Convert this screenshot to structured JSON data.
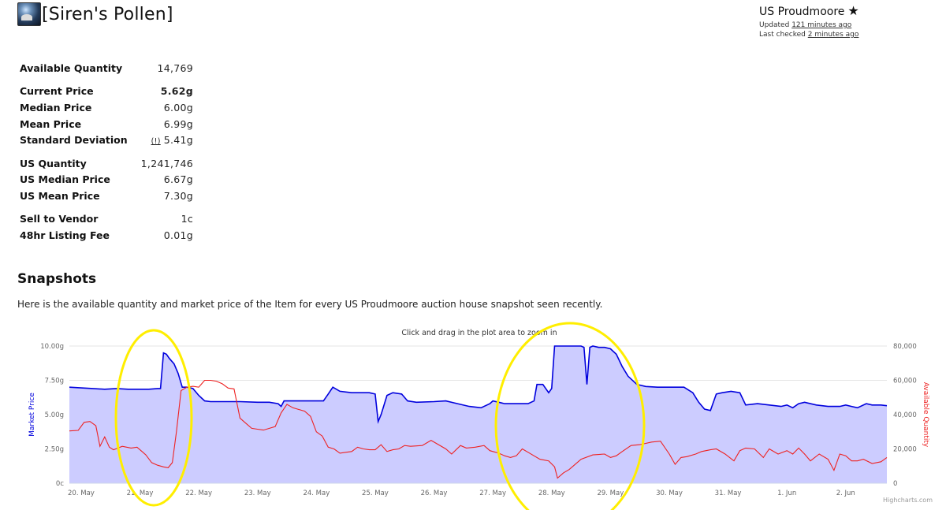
{
  "item": {
    "name": "[Siren's Pollen]"
  },
  "realm": {
    "name": "US Proudmoore",
    "star": "★",
    "updated_label": "Updated",
    "updated_value": "121 minutes ago",
    "checked_label": "Last checked",
    "checked_value": "2 minutes ago"
  },
  "stats": {
    "available_quantity": {
      "label": "Available Quantity",
      "value": "14,769"
    },
    "current_price": {
      "label": "Current Price",
      "value": "5.62g"
    },
    "median_price": {
      "label": "Median Price",
      "value": "6.00g"
    },
    "mean_price": {
      "label": "Mean Price",
      "value": "6.99g"
    },
    "std_dev": {
      "label": "Standard Deviation",
      "flag": "(!)",
      "value": "5.41g"
    },
    "us_quantity": {
      "label": "US Quantity",
      "value": "1,241,746"
    },
    "us_median_price": {
      "label": "US Median Price",
      "value": "6.67g"
    },
    "us_mean_price": {
      "label": "US Mean Price",
      "value": "7.30g"
    },
    "sell_to_vendor": {
      "label": "Sell to Vendor",
      "value": "1c"
    },
    "listing_fee": {
      "label": "48hr Listing Fee",
      "value": "0.01g"
    }
  },
  "snapshots": {
    "title": "Snapshots",
    "description": "Here is the available quantity and market price of the Item for every US Proudmoore auction house snapshot seen recently."
  },
  "chart_data": {
    "type": "line",
    "zoom_hint": "Click and drag in the plot area to zoom in",
    "credits": "Highcharts.com",
    "x_categories": [
      "20. May",
      "21. May",
      "22. May",
      "23. May",
      "24. May",
      "25. May",
      "26. May",
      "27. May",
      "28. May",
      "29. May",
      "30. May",
      "31. May",
      "1. Jun",
      "2. Jun"
    ],
    "x_range": [
      19.8,
      33.7
    ],
    "left_axis": {
      "title": "Market Price",
      "ylim": [
        0,
        10
      ],
      "ticks": [
        "0c",
        "2.50g",
        "5.00g",
        "7.50g",
        "10.00g"
      ],
      "color": "#0000dd"
    },
    "right_axis": {
      "title": "Available Quantity",
      "ylim": [
        0,
        80000
      ],
      "ticks": [
        "0",
        "20,000",
        "40,000",
        "60,000",
        "80,000"
      ],
      "color": "#ee2222"
    },
    "grid": true,
    "series": [
      {
        "axis": "left",
        "color": "#0000dd",
        "fill": "#ccccff",
        "points": [
          [
            19.8,
            7.0
          ],
          [
            20.0,
            6.95
          ],
          [
            20.2,
            6.9
          ],
          [
            20.4,
            6.85
          ],
          [
            20.6,
            6.9
          ],
          [
            20.8,
            6.85
          ],
          [
            21.0,
            6.85
          ],
          [
            21.15,
            6.85
          ],
          [
            21.3,
            6.9
          ],
          [
            21.35,
            6.9
          ],
          [
            21.4,
            9.5
          ],
          [
            21.45,
            9.4
          ],
          [
            21.5,
            9.1
          ],
          [
            21.58,
            8.7
          ],
          [
            21.65,
            8.0
          ],
          [
            21.72,
            7.0
          ],
          [
            21.8,
            7.0
          ],
          [
            21.9,
            6.9
          ],
          [
            22.0,
            6.4
          ],
          [
            22.1,
            6.0
          ],
          [
            22.2,
            5.95
          ],
          [
            22.4,
            5.95
          ],
          [
            22.7,
            5.95
          ],
          [
            23.0,
            5.9
          ],
          [
            23.2,
            5.9
          ],
          [
            23.35,
            5.8
          ],
          [
            23.4,
            5.6
          ],
          [
            23.45,
            6.0
          ],
          [
            23.7,
            6.0
          ],
          [
            24.0,
            6.0
          ],
          [
            24.12,
            6.0
          ],
          [
            24.2,
            6.5
          ],
          [
            24.28,
            7.0
          ],
          [
            24.4,
            6.7
          ],
          [
            24.6,
            6.6
          ],
          [
            24.9,
            6.6
          ],
          [
            25.0,
            6.5
          ],
          [
            25.05,
            4.5
          ],
          [
            25.1,
            5.0
          ],
          [
            25.2,
            6.4
          ],
          [
            25.3,
            6.6
          ],
          [
            25.45,
            6.5
          ],
          [
            25.55,
            6.0
          ],
          [
            25.7,
            5.9
          ],
          [
            26.0,
            5.95
          ],
          [
            26.2,
            6.0
          ],
          [
            26.4,
            5.8
          ],
          [
            26.6,
            5.6
          ],
          [
            26.8,
            5.5
          ],
          [
            26.95,
            5.8
          ],
          [
            27.0,
            6.0
          ],
          [
            27.1,
            5.9
          ],
          [
            27.2,
            5.8
          ],
          [
            27.6,
            5.8
          ],
          [
            27.7,
            6.0
          ],
          [
            27.75,
            7.2
          ],
          [
            27.85,
            7.2
          ],
          [
            27.95,
            6.6
          ],
          [
            28.0,
            6.9
          ],
          [
            28.05,
            10.0
          ],
          [
            28.5,
            10.0
          ],
          [
            28.55,
            9.9
          ],
          [
            28.6,
            7.2
          ],
          [
            28.65,
            9.9
          ],
          [
            28.7,
            10.0
          ],
          [
            28.8,
            9.9
          ],
          [
            28.9,
            9.9
          ],
          [
            29.0,
            9.8
          ],
          [
            29.1,
            9.4
          ],
          [
            29.2,
            8.5
          ],
          [
            29.3,
            7.8
          ],
          [
            29.45,
            7.2
          ],
          [
            29.6,
            7.05
          ],
          [
            29.8,
            7.0
          ],
          [
            30.1,
            7.0
          ],
          [
            30.25,
            7.0
          ],
          [
            30.4,
            6.6
          ],
          [
            30.5,
            5.9
          ],
          [
            30.6,
            5.4
          ],
          [
            30.7,
            5.3
          ],
          [
            30.8,
            6.5
          ],
          [
            30.9,
            6.6
          ],
          [
            31.05,
            6.7
          ],
          [
            31.2,
            6.6
          ],
          [
            31.3,
            5.7
          ],
          [
            31.5,
            5.8
          ],
          [
            31.7,
            5.7
          ],
          [
            31.9,
            5.6
          ],
          [
            32.0,
            5.7
          ],
          [
            32.1,
            5.5
          ],
          [
            32.2,
            5.8
          ],
          [
            32.3,
            5.9
          ],
          [
            32.5,
            5.7
          ],
          [
            32.7,
            5.6
          ],
          [
            32.9,
            5.6
          ],
          [
            33.0,
            5.7
          ],
          [
            33.1,
            5.6
          ],
          [
            33.2,
            5.5
          ],
          [
            33.35,
            5.8
          ],
          [
            33.45,
            5.7
          ],
          [
            33.6,
            5.7
          ],
          [
            33.7,
            5.65
          ]
        ]
      },
      {
        "axis": "right",
        "color": "#ee2222",
        "points": [
          [
            19.8,
            30500
          ],
          [
            19.95,
            30800
          ],
          [
            20.05,
            35500
          ],
          [
            20.15,
            36000
          ],
          [
            20.25,
            33500
          ],
          [
            20.32,
            21500
          ],
          [
            20.4,
            27000
          ],
          [
            20.48,
            21000
          ],
          [
            20.55,
            19500
          ],
          [
            20.7,
            21500
          ],
          [
            20.85,
            20500
          ],
          [
            20.95,
            21000
          ],
          [
            21.05,
            18000
          ],
          [
            21.1,
            16500
          ],
          [
            21.2,
            12000
          ],
          [
            21.3,
            10500
          ],
          [
            21.4,
            9500
          ],
          [
            21.48,
            9000
          ],
          [
            21.55,
            12000
          ],
          [
            21.62,
            30000
          ],
          [
            21.7,
            54000
          ],
          [
            21.8,
            56000
          ],
          [
            21.9,
            56500
          ],
          [
            22.0,
            56000
          ],
          [
            22.1,
            60000
          ],
          [
            22.2,
            60000
          ],
          [
            22.3,
            59500
          ],
          [
            22.4,
            58000
          ],
          [
            22.5,
            55500
          ],
          [
            22.6,
            55000
          ],
          [
            22.7,
            38000
          ],
          [
            22.8,
            35000
          ],
          [
            22.9,
            32000
          ],
          [
            23.0,
            31500
          ],
          [
            23.1,
            31000
          ],
          [
            23.2,
            32000
          ],
          [
            23.3,
            33000
          ],
          [
            23.4,
            41000
          ],
          [
            23.5,
            46000
          ],
          [
            23.6,
            44000
          ],
          [
            23.7,
            43000
          ],
          [
            23.8,
            42000
          ],
          [
            23.9,
            39000
          ],
          [
            24.0,
            30000
          ],
          [
            24.1,
            27500
          ],
          [
            24.2,
            21000
          ],
          [
            24.3,
            20000
          ],
          [
            24.4,
            17500
          ],
          [
            24.5,
            18000
          ],
          [
            24.6,
            18500
          ],
          [
            24.7,
            21000
          ],
          [
            24.8,
            20000
          ],
          [
            24.9,
            19500
          ],
          [
            25.0,
            19500
          ],
          [
            25.1,
            22500
          ],
          [
            25.2,
            18500
          ],
          [
            25.3,
            19500
          ],
          [
            25.4,
            20000
          ],
          [
            25.5,
            22000
          ],
          [
            25.6,
            21500
          ],
          [
            25.8,
            22000
          ],
          [
            25.95,
            25000
          ],
          [
            26.05,
            23000
          ],
          [
            26.2,
            20000
          ],
          [
            26.3,
            17000
          ],
          [
            26.45,
            22000
          ],
          [
            26.55,
            20500
          ],
          [
            26.7,
            21000
          ],
          [
            26.85,
            22000
          ],
          [
            26.95,
            19000
          ],
          [
            27.1,
            17500
          ],
          [
            27.2,
            16000
          ],
          [
            27.3,
            15000
          ],
          [
            27.4,
            16000
          ],
          [
            27.5,
            20000
          ],
          [
            27.6,
            18000
          ],
          [
            27.8,
            14000
          ],
          [
            27.95,
            13000
          ],
          [
            28.05,
            9500
          ],
          [
            28.1,
            3000
          ],
          [
            28.2,
            6000
          ],
          [
            28.3,
            8000
          ],
          [
            28.4,
            11000
          ],
          [
            28.5,
            14000
          ],
          [
            28.7,
            16500
          ],
          [
            28.9,
            17000
          ],
          [
            29.0,
            15000
          ],
          [
            29.1,
            16000
          ],
          [
            29.2,
            18500
          ],
          [
            29.35,
            22000
          ],
          [
            29.5,
            22500
          ],
          [
            29.7,
            24000
          ],
          [
            29.85,
            24500
          ],
          [
            30.0,
            17000
          ],
          [
            30.1,
            11000
          ],
          [
            30.2,
            15000
          ],
          [
            30.3,
            15500
          ],
          [
            30.45,
            17000
          ],
          [
            30.55,
            18500
          ],
          [
            30.7,
            19500
          ],
          [
            30.8,
            20000
          ],
          [
            30.95,
            17000
          ],
          [
            31.1,
            13000
          ],
          [
            31.2,
            19000
          ],
          [
            31.3,
            20500
          ],
          [
            31.45,
            20000
          ],
          [
            31.6,
            15000
          ],
          [
            31.7,
            20000
          ],
          [
            31.85,
            17000
          ],
          [
            32.0,
            19000
          ],
          [
            32.1,
            17000
          ],
          [
            32.2,
            20500
          ],
          [
            32.3,
            17000
          ],
          [
            32.4,
            13000
          ],
          [
            32.55,
            17000
          ],
          [
            32.7,
            14000
          ],
          [
            32.8,
            7500
          ],
          [
            32.9,
            17000
          ],
          [
            33.0,
            16000
          ],
          [
            33.1,
            13000
          ],
          [
            33.2,
            13000
          ],
          [
            33.3,
            14000
          ],
          [
            33.45,
            11500
          ],
          [
            33.6,
            12500
          ],
          [
            33.7,
            15000
          ]
        ]
      }
    ]
  }
}
